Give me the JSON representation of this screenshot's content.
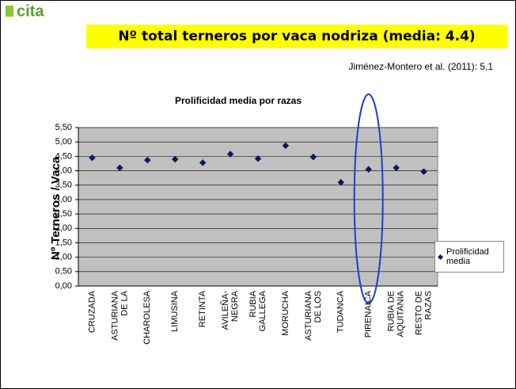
{
  "slide": {
    "logo": "cita",
    "title": "Nº total terneros por vaca nodriza (media: 4.4)",
    "note": "Jiménez-Montero et al. (2011): 5,1"
  },
  "chart_data": {
    "type": "scatter",
    "title": "Prolificidad media por razas",
    "ylabel": "Nº Terneros / Vaca",
    "categories": [
      [
        "CRUZADA"
      ],
      [
        "ASTURIANA",
        "DE LA"
      ],
      [
        "CHAROLESA"
      ],
      [
        "LIMUSINA"
      ],
      [
        "RETINTA"
      ],
      [
        "AVILEÑA-",
        "NEGRA"
      ],
      [
        "RUBIA",
        "GALLEGA"
      ],
      [
        "MORUCHA"
      ],
      [
        "ASTURIANA",
        "DE LOS"
      ],
      [
        "TUDANCA"
      ],
      [
        "PIRENAICA"
      ],
      [
        "RUBIA DE",
        "AQUITANIA"
      ],
      [
        "RESTO DE",
        "RAZAS"
      ]
    ],
    "series": [
      {
        "name": "Prolificidad media",
        "color": "#0a1a5c",
        "values": [
          4.45,
          4.1,
          4.37,
          4.4,
          4.28,
          4.58,
          4.42,
          4.87,
          4.48,
          3.6,
          4.05,
          4.1,
          3.97
        ]
      }
    ],
    "ylim": [
      0,
      5.5
    ],
    "yticks": [
      {
        "value": 0,
        "label": "0,00"
      },
      {
        "value": 0.5,
        "label": "0,50"
      },
      {
        "value": 1,
        "label": "1,00"
      },
      {
        "value": 1.5,
        "label": "1,50"
      },
      {
        "value": 2,
        "label": "2,00"
      },
      {
        "value": 2.5,
        "label": "2,50"
      },
      {
        "value": 3,
        "label": "3,00"
      },
      {
        "value": 3.5,
        "label": "3,50"
      },
      {
        "value": 4,
        "label": "4,00"
      },
      {
        "value": 4.5,
        "label": "4,50"
      },
      {
        "value": 5,
        "label": "5,00"
      },
      {
        "value": 5.5,
        "label": "5,50"
      }
    ],
    "grid": true,
    "legend": "right"
  }
}
